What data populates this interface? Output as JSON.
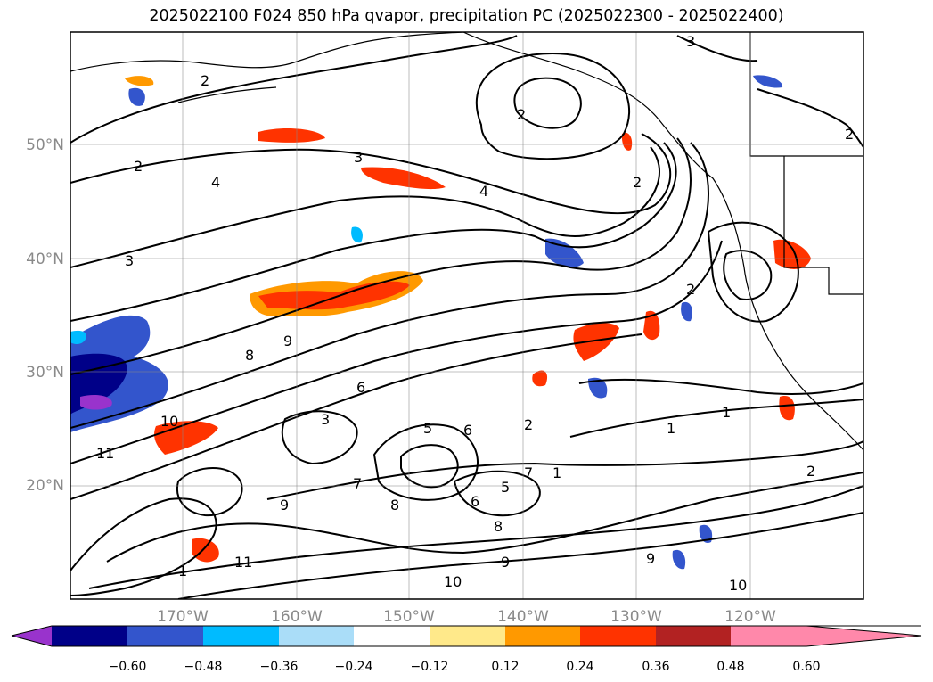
{
  "title": "2025022100 F024 850 hPa qvapor, precipitation PC (2025022300 - 2025022400)",
  "map": {
    "lat_ticks": [
      "20°N",
      "30°N",
      "40°N",
      "50°N"
    ],
    "lon_ticks": [
      "170°W",
      "160°W",
      "150°W",
      "140°W",
      "130°W",
      "120°W"
    ],
    "grid": true,
    "coastline_color": "#000000",
    "contour_color": "#000000",
    "contour_labels": [
      "3",
      "2",
      "2",
      "3",
      "4",
      "4",
      "2",
      "3",
      "2",
      "9",
      "8",
      "6",
      "3",
      "5",
      "6",
      "2",
      "1",
      "7",
      "1",
      "2",
      "1",
      "10",
      "11",
      "9",
      "8",
      "9",
      "10",
      "11",
      "1",
      "9",
      "8",
      "7",
      "6",
      "5",
      "10",
      "2",
      "2"
    ]
  },
  "colorbar": {
    "extend": "both",
    "ticks": [
      "−0.60",
      "−0.48",
      "−0.36",
      "−0.24",
      "−0.12",
      "0.12",
      "0.24",
      "0.36",
      "0.48",
      "0.60"
    ],
    "colors": [
      "#9933cc",
      "#000088",
      "#3355cc",
      "#00bbff",
      "#aaddf8",
      "#ffffff",
      "#ffe98a",
      "#ff9900",
      "#ff3300",
      "#b22222",
      "#ff88aa"
    ]
  }
}
